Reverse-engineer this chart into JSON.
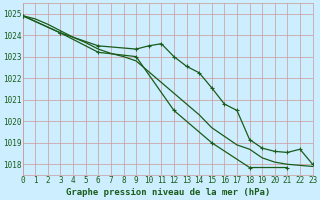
{
  "title": "Graphe pression niveau de la mer (hPa)",
  "background_color": "#cceeff",
  "grid_color_major": "#cc9999",
  "grid_color_minor": "#ddcccc",
  "line_color": "#1a5c1a",
  "xlim": [
    0,
    23
  ],
  "ylim": [
    1017.5,
    1025.5
  ],
  "yticks": [
    1018,
    1019,
    1020,
    1021,
    1022,
    1023,
    1024,
    1025
  ],
  "xticks": [
    0,
    1,
    2,
    3,
    4,
    5,
    6,
    7,
    8,
    9,
    10,
    11,
    12,
    13,
    14,
    15,
    16,
    17,
    18,
    19,
    20,
    21,
    22,
    23
  ],
  "line1_x": [
    0,
    1,
    2,
    3,
    4,
    5,
    6,
    7,
    8,
    9,
    10,
    11,
    12,
    13,
    14,
    15,
    16,
    17,
    18,
    19,
    20,
    21,
    22,
    23
  ],
  "line1_y": [
    1024.9,
    1024.75,
    1024.5,
    1024.2,
    1023.9,
    1023.65,
    1023.35,
    1023.15,
    1023.0,
    1022.8,
    1022.3,
    1021.8,
    1021.3,
    1020.8,
    1020.3,
    1019.7,
    1019.3,
    1018.9,
    1018.7,
    1018.3,
    1018.1,
    1018.0,
    1017.95,
    1017.9
  ],
  "line2_x": [
    0,
    3,
    6,
    9,
    10,
    11,
    12,
    13,
    14,
    15,
    16,
    17,
    18,
    19,
    20,
    21,
    22,
    23
  ],
  "line2_y": [
    1024.9,
    1024.1,
    1023.5,
    1023.35,
    1023.5,
    1023.6,
    1023.0,
    1022.55,
    1022.25,
    1021.55,
    1020.8,
    1020.5,
    1019.15,
    1018.75,
    1018.6,
    1018.55,
    1018.7,
    1018.0
  ],
  "line3_x": [
    0,
    3,
    6,
    9,
    12,
    15,
    18,
    21
  ],
  "line3_y": [
    1024.9,
    1024.1,
    1023.2,
    1023.0,
    1020.5,
    1019.0,
    1017.85,
    1017.85
  ],
  "tick_fontsize": 5.5,
  "label_fontsize": 6.5,
  "linewidth": 0.9,
  "markersize": 3.5
}
